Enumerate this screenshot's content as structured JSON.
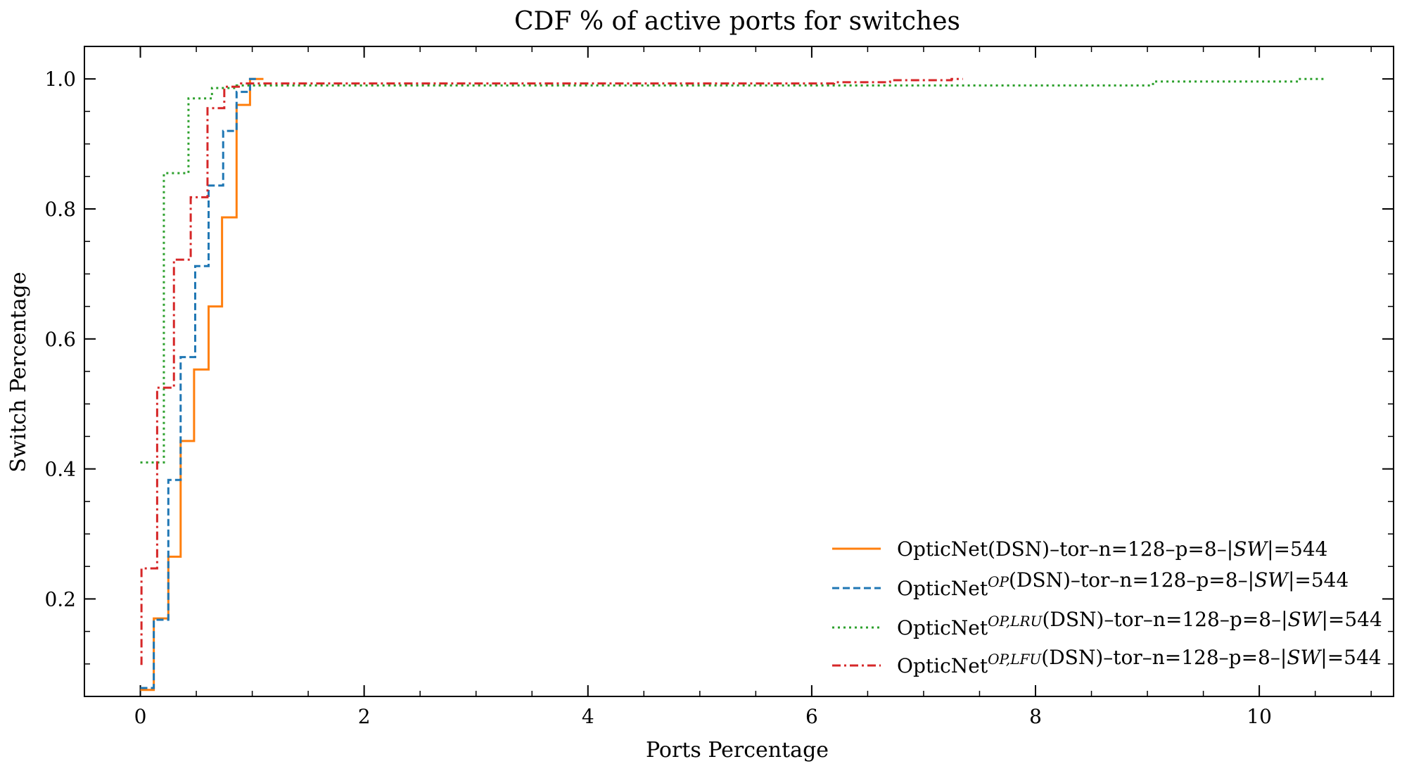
{
  "chart_data": {
    "type": "line",
    "title": "CDF % of active ports for switches",
    "xlabel": "Ports Percentage",
    "ylabel": "Switch Percentage",
    "xlim": [
      -0.5,
      11.2
    ],
    "ylim": [
      0.05,
      1.05
    ],
    "xticks": [
      0,
      2,
      4,
      6,
      8,
      10
    ],
    "xtick_labels": [
      "0",
      "2",
      "4",
      "6",
      "8",
      "10"
    ],
    "yticks": [
      0.2,
      0.4,
      0.6,
      0.8,
      1.0
    ],
    "ytick_labels": [
      "0.2",
      "0.4",
      "0.6",
      "0.8",
      "1.0"
    ],
    "grid": false,
    "legend_position": "bottom-right",
    "series": [
      {
        "name": "OpticNet(DSN)–tor–n=128–p=8–|SW|=544",
        "name_parts": [
          {
            "text": "OpticNet(DSN)–tor–n=128–p=8–|"
          },
          {
            "text": "SW",
            "style": "italic"
          },
          {
            "text": "|=544"
          }
        ],
        "color": "#ff7f0e",
        "dash": "solid",
        "step_points": [
          [
            0,
            0.06
          ],
          [
            0.12,
            0.17
          ],
          [
            0.25,
            0.265
          ],
          [
            0.36,
            0.443
          ],
          [
            0.48,
            0.553
          ],
          [
            0.61,
            0.65
          ],
          [
            0.73,
            0.787
          ],
          [
            0.86,
            0.96
          ],
          [
            0.98,
            1.0
          ],
          [
            1.1,
            1.0
          ]
        ]
      },
      {
        "name": "OpticNetOP(DSN)–tor–n=128–p=8–|SW|=544",
        "name_parts": [
          {
            "text": "OpticNet"
          },
          {
            "text": "OP",
            "style": "super"
          },
          {
            "text": "(DSN)–tor–n=128–p=8–|"
          },
          {
            "text": "SW",
            "style": "italic"
          },
          {
            "text": "|=544"
          }
        ],
        "color": "#1f77b4",
        "dash": "dashed",
        "step_points": [
          [
            0,
            0.063
          ],
          [
            0.12,
            0.168
          ],
          [
            0.25,
            0.383
          ],
          [
            0.36,
            0.572
          ],
          [
            0.49,
            0.712
          ],
          [
            0.61,
            0.836
          ],
          [
            0.74,
            0.92
          ],
          [
            0.86,
            0.98
          ],
          [
            0.98,
            1.0
          ],
          [
            1.05,
            1.0
          ]
        ]
      },
      {
        "name": "OpticNetOP,LRU(DSN)–tor–n=128–p=8–|SW|=544",
        "name_parts": [
          {
            "text": "OpticNet"
          },
          {
            "text": "OP,LRU",
            "style": "super"
          },
          {
            "text": "(DSN)–tor–n=128–p=8–|"
          },
          {
            "text": "SW",
            "style": "italic"
          },
          {
            "text": "|=544"
          }
        ],
        "color": "#2ca02c",
        "dash": "dotted",
        "step_points": [
          [
            0,
            0.41
          ],
          [
            0.21,
            0.855
          ],
          [
            0.43,
            0.97
          ],
          [
            0.64,
            0.986
          ],
          [
            0.86,
            0.99
          ],
          [
            6.4,
            0.99
          ],
          [
            9.05,
            0.996
          ],
          [
            10.35,
            1.0
          ],
          [
            10.6,
            1.0
          ]
        ]
      },
      {
        "name": "OpticNetOP,LFU(DSN)–tor–n=128–p=8–|SW|=544",
        "name_parts": [
          {
            "text": "OpticNet"
          },
          {
            "text": "OP,LFU",
            "style": "super"
          },
          {
            "text": "(DSN)–tor–n=128–p=8–|"
          },
          {
            "text": "SW",
            "style": "italic"
          },
          {
            "text": "|=544"
          }
        ],
        "color": "#d62728",
        "dash": "dashdot",
        "step_points": [
          [
            0,
            0.1
          ],
          [
            0.01,
            0.247
          ],
          [
            0.15,
            0.525
          ],
          [
            0.3,
            0.722
          ],
          [
            0.45,
            0.818
          ],
          [
            0.6,
            0.955
          ],
          [
            0.75,
            0.988
          ],
          [
            0.9,
            0.993
          ],
          [
            6.2,
            0.995
          ],
          [
            6.7,
            0.998
          ],
          [
            7.25,
            1.0
          ],
          [
            7.35,
            1.0
          ]
        ]
      }
    ]
  }
}
